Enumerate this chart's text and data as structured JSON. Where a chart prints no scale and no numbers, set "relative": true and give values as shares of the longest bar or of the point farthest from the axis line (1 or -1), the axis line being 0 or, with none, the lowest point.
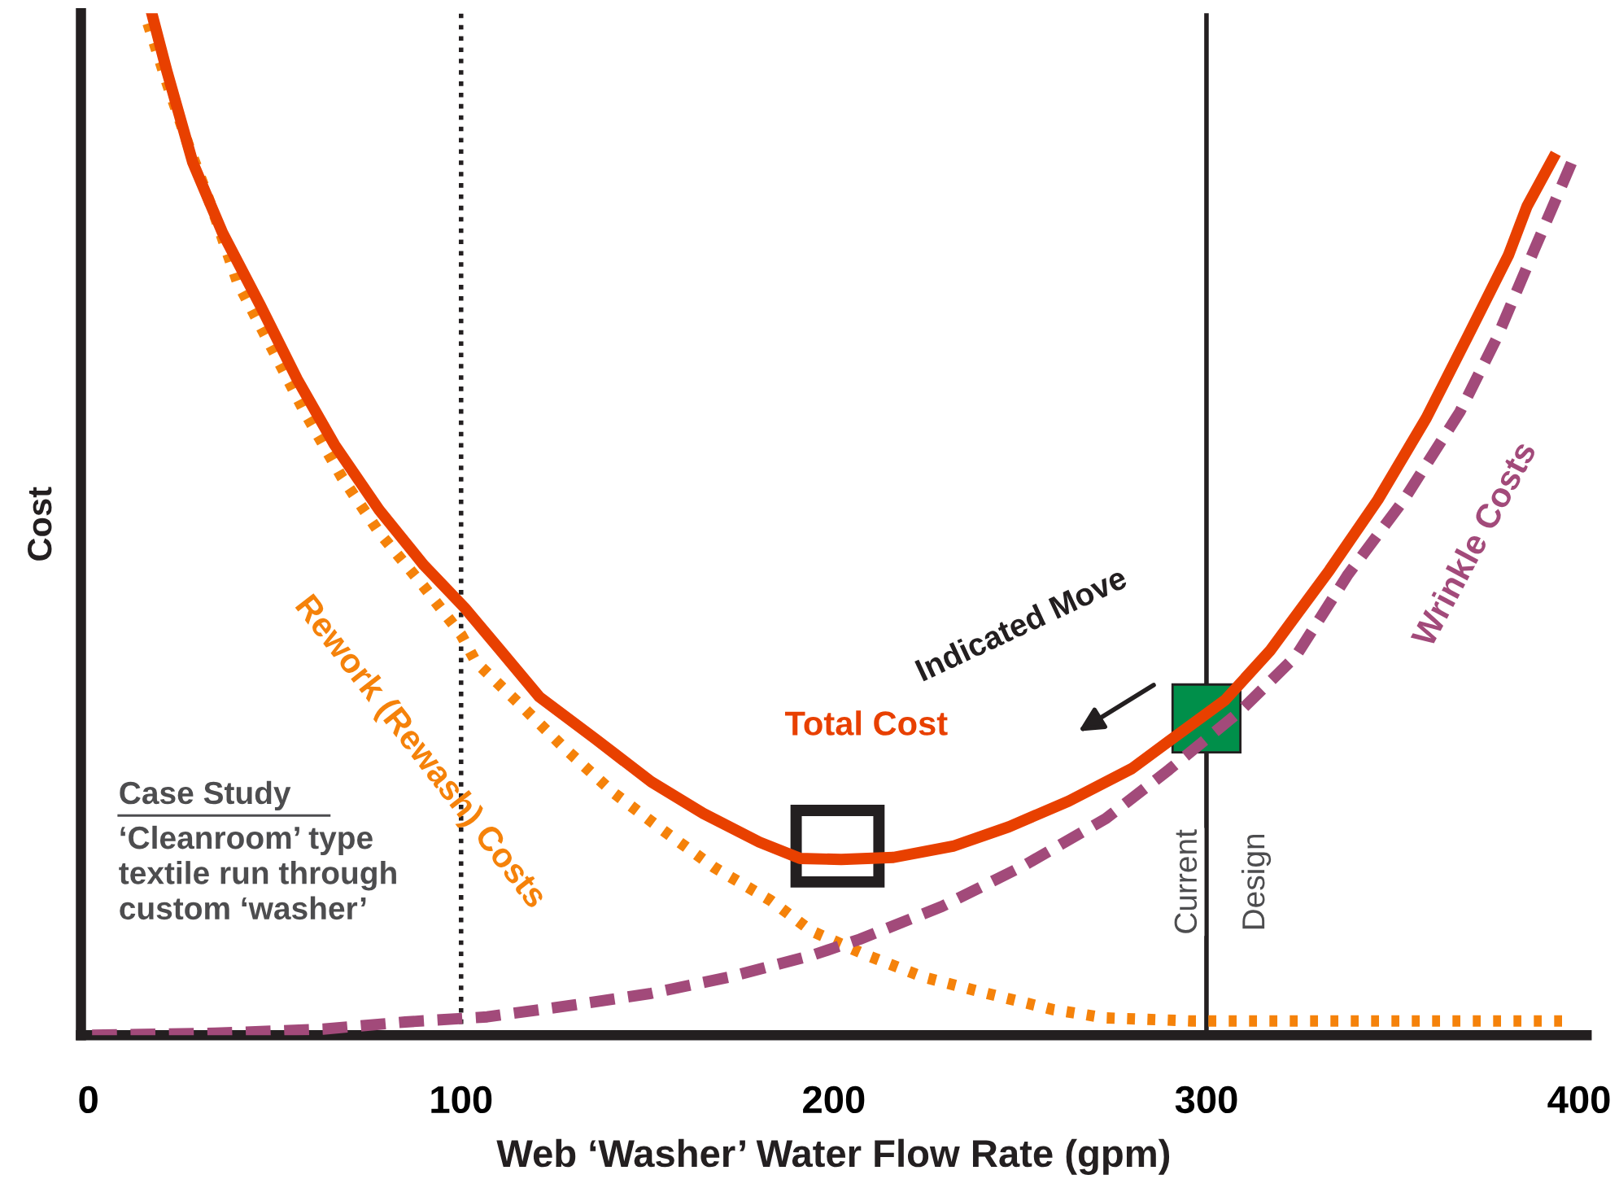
{
  "chart_data": {
    "type": "line",
    "relative": true,
    "xlabel": "Web ‘Washer’ Water Flow Rate (gpm)",
    "ylabel": "Cost",
    "xlim": [
      -2,
      402
    ],
    "xticks": [
      0,
      100,
      200,
      300,
      400
    ],
    "legend": false,
    "tick_labels": "x",
    "series": [
      {
        "name": "Total Cost",
        "color": "#e84000",
        "line_style": "solid",
        "x": [
          17,
          21,
          28,
          36,
          46,
          56,
          66,
          78,
          90,
          101,
          110,
          121,
          136,
          151,
          165,
          180,
          191,
          202,
          216,
          232,
          247,
          263,
          280,
          290,
          305,
          317,
          333,
          346,
          359,
          370,
          381,
          386,
          393
        ],
        "values": [
          1.0,
          0.944,
          0.854,
          0.785,
          0.715,
          0.642,
          0.578,
          0.514,
          0.46,
          0.418,
          0.379,
          0.331,
          0.29,
          0.248,
          0.217,
          0.189,
          0.173,
          0.172,
          0.174,
          0.185,
          0.204,
          0.229,
          0.261,
          0.288,
          0.328,
          0.376,
          0.455,
          0.524,
          0.604,
          0.683,
          0.763,
          0.811,
          0.858
        ]
      },
      {
        "name": "Rework (Rewash) Costs",
        "color": "#f5820a",
        "line_style": "dotted",
        "x": [
          16,
          21,
          27,
          34,
          40,
          49,
          58,
          68,
          78,
          90,
          100,
          104,
          116,
          128,
          141,
          154,
          168,
          183,
          194,
          209,
          224,
          241,
          259,
          273,
          296,
          398
        ],
        "values": [
          0.99,
          0.933,
          0.869,
          0.801,
          0.737,
          0.674,
          0.61,
          0.546,
          0.492,
          0.439,
          0.392,
          0.365,
          0.323,
          0.28,
          0.237,
          0.201,
          0.164,
          0.132,
          0.102,
          0.078,
          0.057,
          0.041,
          0.025,
          0.017,
          0.014,
          0.014
        ]
      },
      {
        "name": "Wrinkle Costs",
        "color": "#a24a7a",
        "line_style": "dashed",
        "x": [
          1,
          34,
          63,
          85,
          107,
          129,
          151,
          172,
          194,
          207,
          229,
          251,
          273,
          290,
          309,
          324,
          338,
          353,
          368,
          378,
          388,
          398
        ],
        "values": [
          0,
          0.002,
          0.006,
          0.013,
          0.018,
          0.029,
          0.041,
          0.057,
          0.078,
          0.094,
          0.126,
          0.166,
          0.212,
          0.26,
          0.317,
          0.371,
          0.451,
          0.524,
          0.61,
          0.683,
          0.769,
          0.854
        ]
      },
      {
        "type": "scatter",
        "marker": "square",
        "color": "#008f4a",
        "x": [
          300
        ],
        "values": [
          0.31
        ]
      }
    ],
    "ref_lines": [
      {
        "axis": "x",
        "value": 100,
        "color": "#231f20",
        "line_style": "dotted"
      },
      {
        "axis": "x",
        "value": 300,
        "color": "#231f20",
        "line_style": "solid",
        "label": "Current Design"
      }
    ],
    "annotations": [
      "Indicated Move",
      "Case Study",
      "‘Cleanroom’ type\ntextile run through\ncustom ‘washer’"
    ]
  }
}
